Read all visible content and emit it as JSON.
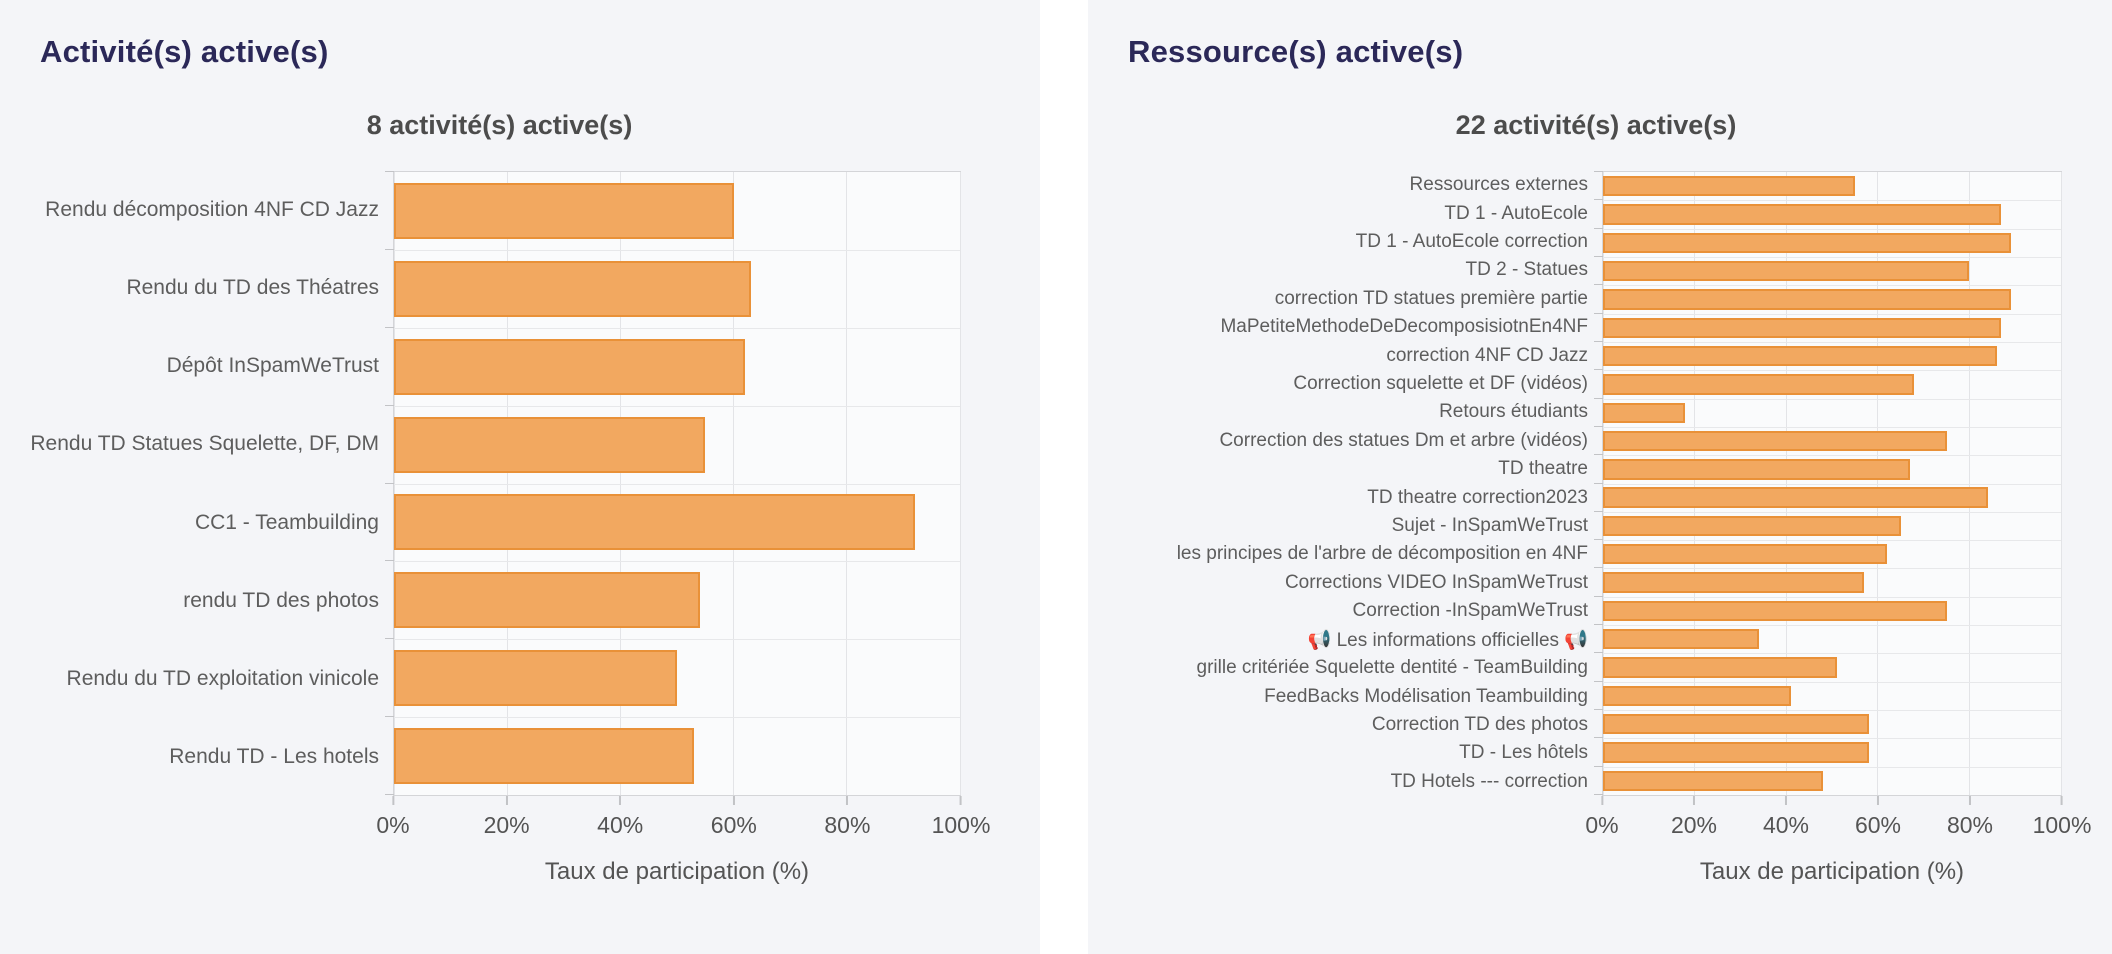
{
  "panels": [
    {
      "header": "Activité(s) active(s)"
    },
    {
      "header": "Ressource(s) active(s)"
    }
  ],
  "colors": {
    "panel_background": "#f4f5f8",
    "header_text": "#2b2858",
    "bar_fill": "#f2a860",
    "bar_border": "#e99138",
    "axis_text": "#545454",
    "label_text": "#5d5d5d"
  },
  "chart_data": [
    {
      "type": "bar",
      "orientation": "horizontal",
      "title": "8 activité(s) active(s)",
      "categories": [
        "Rendu décomposition 4NF CD Jazz",
        "Rendu du TD des Théatres",
        "Dépôt InSpamWeTrust",
        "Rendu TD Statues Squelette, DF, DM",
        "CC1 - Teambuilding",
        "rendu TD des photos",
        "Rendu du TD exploitation vinicole",
        "Rendu TD - Les hotels"
      ],
      "values": [
        60,
        63,
        62,
        55,
        92,
        54,
        50,
        53
      ],
      "xlabel": "Taux de participation (%)",
      "xlim": [
        0,
        100
      ],
      "xticks": [
        "0%",
        "20%",
        "40%",
        "60%",
        "80%",
        "100%"
      ],
      "grid": true,
      "legend": "none"
    },
    {
      "type": "bar",
      "orientation": "horizontal",
      "title": "22 activité(s) active(s)",
      "categories": [
        "Ressources externes",
        "TD 1 - AutoEcole",
        "TD 1 - AutoEcole correction",
        "TD 2 - Statues",
        "correction TD statues première partie",
        "MaPetiteMethodeDeDecomposisiotnEn4NF",
        "correction 4NF CD Jazz",
        "Correction squelette et DF (vidéos)",
        "Retours étudiants",
        "Correction des statues Dm et arbre (vidéos)",
        "TD theatre",
        "TD theatre correction2023",
        "Sujet - InSpamWeTrust",
        "les principes de l'arbre de décomposition en 4NF",
        "Corrections VIDEO InSpamWeTrust",
        "Correction -InSpamWeTrust",
        "📢 Les informations officielles 📢",
        "grille critériée Squelette dentité - TeamBuilding",
        "FeedBacks Modélisation Teambuilding",
        "Correction TD des photos",
        "TD - Les hôtels",
        "TD Hotels --- correction"
      ],
      "values": [
        55,
        87,
        89,
        80,
        89,
        87,
        86,
        68,
        18,
        75,
        67,
        84,
        65,
        62,
        57,
        75,
        34,
        51,
        41,
        58,
        58,
        48
      ],
      "xlabel": "Taux de participation (%)",
      "xlim": [
        0,
        100
      ],
      "xticks": [
        "0%",
        "20%",
        "40%",
        "60%",
        "80%",
        "100%"
      ],
      "grid": true,
      "legend": "none"
    }
  ]
}
